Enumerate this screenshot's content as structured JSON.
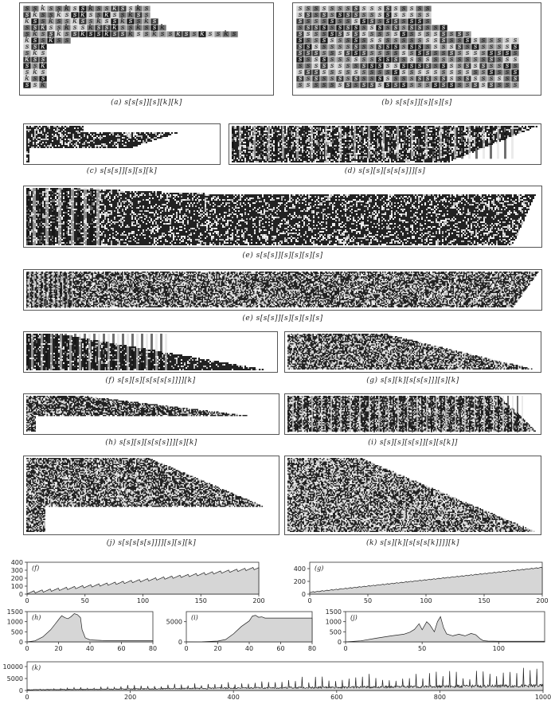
{
  "diagrams": [
    {
      "id": "a",
      "caption": "(a)    s[s[s]][s][k][k]",
      "letters": [
        "s",
        "s",
        "k"
      ]
    },
    {
      "id": "b",
      "caption": "(b)    s[s[s]][s][s][s]",
      "letters": [
        "s",
        "s"
      ]
    },
    {
      "id": "c",
      "caption": "(c)    s[s[s]][s][s][k]"
    },
    {
      "id": "d",
      "caption": "(d)    s[s][s][s[s[s]]][s]"
    },
    {
      "id": "e1",
      "caption": "(e)    s[s[s]][s][s][s][s]"
    },
    {
      "id": "e2",
      "caption": "(e)    s[s[s]][s][s][s][s]"
    },
    {
      "id": "f",
      "caption": "(f)    s[s][s][s[s[s[s]]]][k]"
    },
    {
      "id": "g",
      "caption": "(g)    s[s][k][s[s[s]]][s][k]"
    },
    {
      "id": "h",
      "caption": "(h)    s[s][s][s[s[s]]][s][k]"
    },
    {
      "id": "i",
      "caption": "(i)    s[s][s][s[s]][s][s[k]]"
    },
    {
      "id": "j",
      "caption": "(j)    s[s[s[s[s]]]][s][s][k]"
    },
    {
      "id": "k",
      "caption": "(k)    s[s][k][s[s[s[k]]]][k]"
    }
  ],
  "charts": [
    {
      "id": "f",
      "label": "(f)",
      "type": "area",
      "xticks": [
        "0",
        "50",
        "100",
        "150",
        "200"
      ],
      "yticks": [
        "400",
        "300",
        "200",
        "100",
        "0"
      ],
      "xlim": [
        0,
        200
      ],
      "ylim": [
        0,
        400
      ],
      "chart_data": {
        "type": "area",
        "x_range": [
          0,
          200
        ],
        "y_start": 20,
        "y_end": 330,
        "sawtooth_period": 7,
        "sawtooth_amp": 35
      }
    },
    {
      "id": "g",
      "label": "(g)",
      "type": "area",
      "xticks": [
        "0",
        "50",
        "100",
        "150",
        "200"
      ],
      "yticks": [
        "400",
        "200",
        "0"
      ],
      "xlim": [
        0,
        200
      ],
      "ylim": [
        0,
        500
      ],
      "chart_data": {
        "type": "area",
        "x_range": [
          0,
          200
        ],
        "y_start": 30,
        "y_end": 420,
        "sawtooth_period": 4,
        "sawtooth_amp": 15
      }
    },
    {
      "id": "h",
      "label": "(h)",
      "type": "area",
      "xticks": [
        "0",
        "20",
        "40",
        "60",
        "80"
      ],
      "yticks": [
        "1500",
        "1000",
        "500",
        "0"
      ],
      "xlim": [
        0,
        80
      ],
      "ylim": [
        0,
        1500
      ],
      "chart_data": {
        "type": "area",
        "points": [
          [
            0,
            0
          ],
          [
            5,
            50
          ],
          [
            10,
            250
          ],
          [
            15,
            600
          ],
          [
            18,
            900
          ],
          [
            20,
            1100
          ],
          [
            22,
            1300
          ],
          [
            24,
            1200
          ],
          [
            26,
            1150
          ],
          [
            28,
            1250
          ],
          [
            30,
            1400
          ],
          [
            32,
            1350
          ],
          [
            34,
            1200
          ],
          [
            35,
            600
          ],
          [
            37,
            200
          ],
          [
            40,
            100
          ],
          [
            45,
            80
          ],
          [
            50,
            60
          ],
          [
            80,
            60
          ]
        ]
      }
    },
    {
      "id": "i",
      "label": "(i)",
      "type": "area",
      "xticks": [
        "0",
        "20",
        "40",
        "60",
        "80"
      ],
      "yticks": [
        "5000",
        "0"
      ],
      "xlim": [
        0,
        80
      ],
      "ylim": [
        0,
        7500
      ],
      "chart_data": {
        "type": "area",
        "points": [
          [
            0,
            0
          ],
          [
            10,
            40
          ],
          [
            20,
            200
          ],
          [
            25,
            600
          ],
          [
            30,
            2000
          ],
          [
            35,
            3800
          ],
          [
            40,
            5200
          ],
          [
            42,
            6400
          ],
          [
            44,
            6600
          ],
          [
            46,
            6100
          ],
          [
            48,
            6200
          ],
          [
            50,
            5900
          ],
          [
            80,
            5900
          ]
        ]
      }
    },
    {
      "id": "j",
      "label": "(j)",
      "type": "area",
      "xticks": [
        "0",
        "50",
        "100"
      ],
      "yticks": [
        "1500",
        "1000",
        "500",
        "0"
      ],
      "xlim": [
        0,
        130
      ],
      "ylim": [
        0,
        1500
      ],
      "chart_data": {
        "type": "area",
        "points": [
          [
            0,
            0
          ],
          [
            10,
            50
          ],
          [
            20,
            180
          ],
          [
            30,
            300
          ],
          [
            38,
            380
          ],
          [
            42,
            480
          ],
          [
            45,
            620
          ],
          [
            48,
            900
          ],
          [
            50,
            600
          ],
          [
            53,
            1000
          ],
          [
            55,
            850
          ],
          [
            58,
            500
          ],
          [
            60,
            1000
          ],
          [
            62,
            1250
          ],
          [
            64,
            700
          ],
          [
            66,
            400
          ],
          [
            70,
            300
          ],
          [
            74,
            380
          ],
          [
            78,
            300
          ],
          [
            82,
            420
          ],
          [
            85,
            350
          ],
          [
            88,
            150
          ],
          [
            90,
            60
          ],
          [
            93,
            40
          ],
          [
            100,
            30
          ],
          [
            130,
            30
          ]
        ]
      }
    },
    {
      "id": "k",
      "label": "(k)",
      "type": "spikes",
      "xticks": [
        "0",
        "200",
        "400",
        "600",
        "800",
        "1000"
      ],
      "yticks": [
        "10000",
        "5000",
        "0"
      ],
      "xlim": [
        0,
        1000
      ],
      "ylim": [
        0,
        12000
      ],
      "chart_data": {
        "type": "area",
        "x_range": [
          0,
          1000
        ],
        "baseline_start": 300,
        "baseline_end": 2000,
        "spike_period": 13,
        "spike_peak_end": 8500
      }
    }
  ],
  "colors": {
    "dark": "#1a1a1a",
    "mid": "#777777",
    "light": "#cfcfcf",
    "fill": "#d6d6d6",
    "frame": "#444444"
  }
}
